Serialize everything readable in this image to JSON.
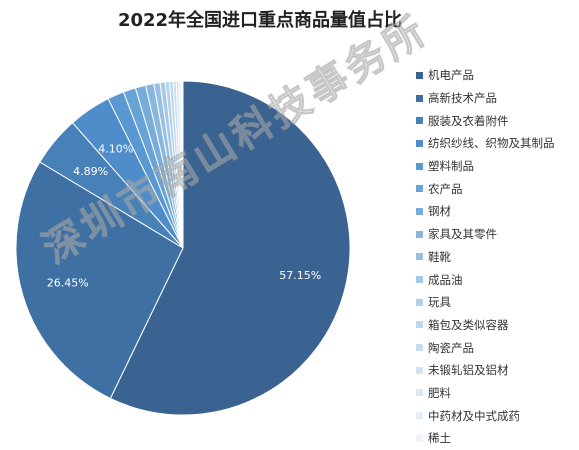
{
  "watermark_text": "深圳市南山科技事务所",
  "chart_data": {
    "type": "pie",
    "title": "2022年全国进口重点商品量值占比",
    "categories": [
      "机电产品",
      "高新技术产品",
      "服装及衣着附件",
      "纺织纱线、织物及其制品",
      "塑料制品",
      "农产品",
      "钢材",
      "家具及其零件",
      "鞋靴",
      "成品油",
      "玩具",
      "箱包及类似容器",
      "陶瓷产品",
      "未锻轧铝及铝材",
      "肥料",
      "中药材及中式成药",
      "稀土"
    ],
    "values": [
      57.15,
      26.45,
      4.89,
      4.1,
      1.6,
      1.2,
      1.0,
      0.8,
      0.6,
      0.5,
      0.4,
      0.35,
      0.3,
      0.25,
      0.2,
      0.12,
      0.08
    ],
    "data_labels": [
      "57.15%",
      "26.45%",
      "4.89%",
      "4.10%",
      "",
      "",
      "",
      "",
      "",
      "",
      "",
      "",
      "",
      "",
      "",
      "",
      ""
    ],
    "colors": [
      "#3a6391",
      "#3f70a4",
      "#4880b8",
      "#4f8dca",
      "#5a98d2",
      "#68a3d7",
      "#78addb",
      "#88b7de",
      "#97c0e2",
      "#a4c8e6",
      "#b1d0e9",
      "#bcd7ec",
      "#c7ddef",
      "#d1e3f2",
      "#dbe9f5",
      "#e4eef7",
      "#ecf3fa"
    ],
    "legend_position": "right"
  }
}
